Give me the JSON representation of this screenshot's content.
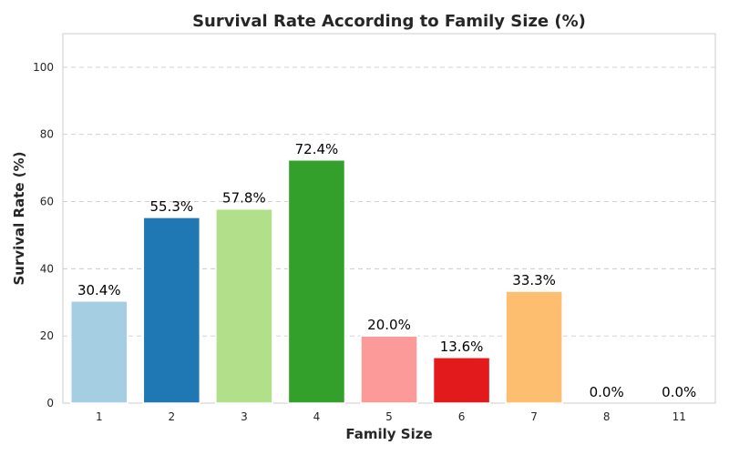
{
  "chart_data": {
    "type": "bar",
    "title": "Survival Rate According to Family Size (%)",
    "xlabel": "Family Size",
    "ylabel": "Survival Rate (%)",
    "categories": [
      "1",
      "2",
      "3",
      "4",
      "5",
      "6",
      "7",
      "8",
      "11"
    ],
    "values": [
      30.4,
      55.3,
      57.8,
      72.4,
      20.0,
      13.6,
      33.3,
      0.0,
      0.0
    ],
    "value_labels": [
      "30.4%",
      "55.3%",
      "57.8%",
      "72.4%",
      "20.0%",
      "13.6%",
      "33.3%",
      "0.0%",
      "0.0%"
    ],
    "colors": [
      "#a6cee3",
      "#1f78b4",
      "#b2df8a",
      "#33a02c",
      "#fb9a99",
      "#e31a1c",
      "#fdbf6f",
      "#ff7f00",
      "#cab2d6"
    ],
    "ylim": [
      0,
      110
    ],
    "yticks": [
      0,
      20,
      40,
      60,
      80,
      100
    ],
    "ytick_labels": [
      "0",
      "20",
      "40",
      "60",
      "80",
      "100"
    ],
    "grid": true
  }
}
